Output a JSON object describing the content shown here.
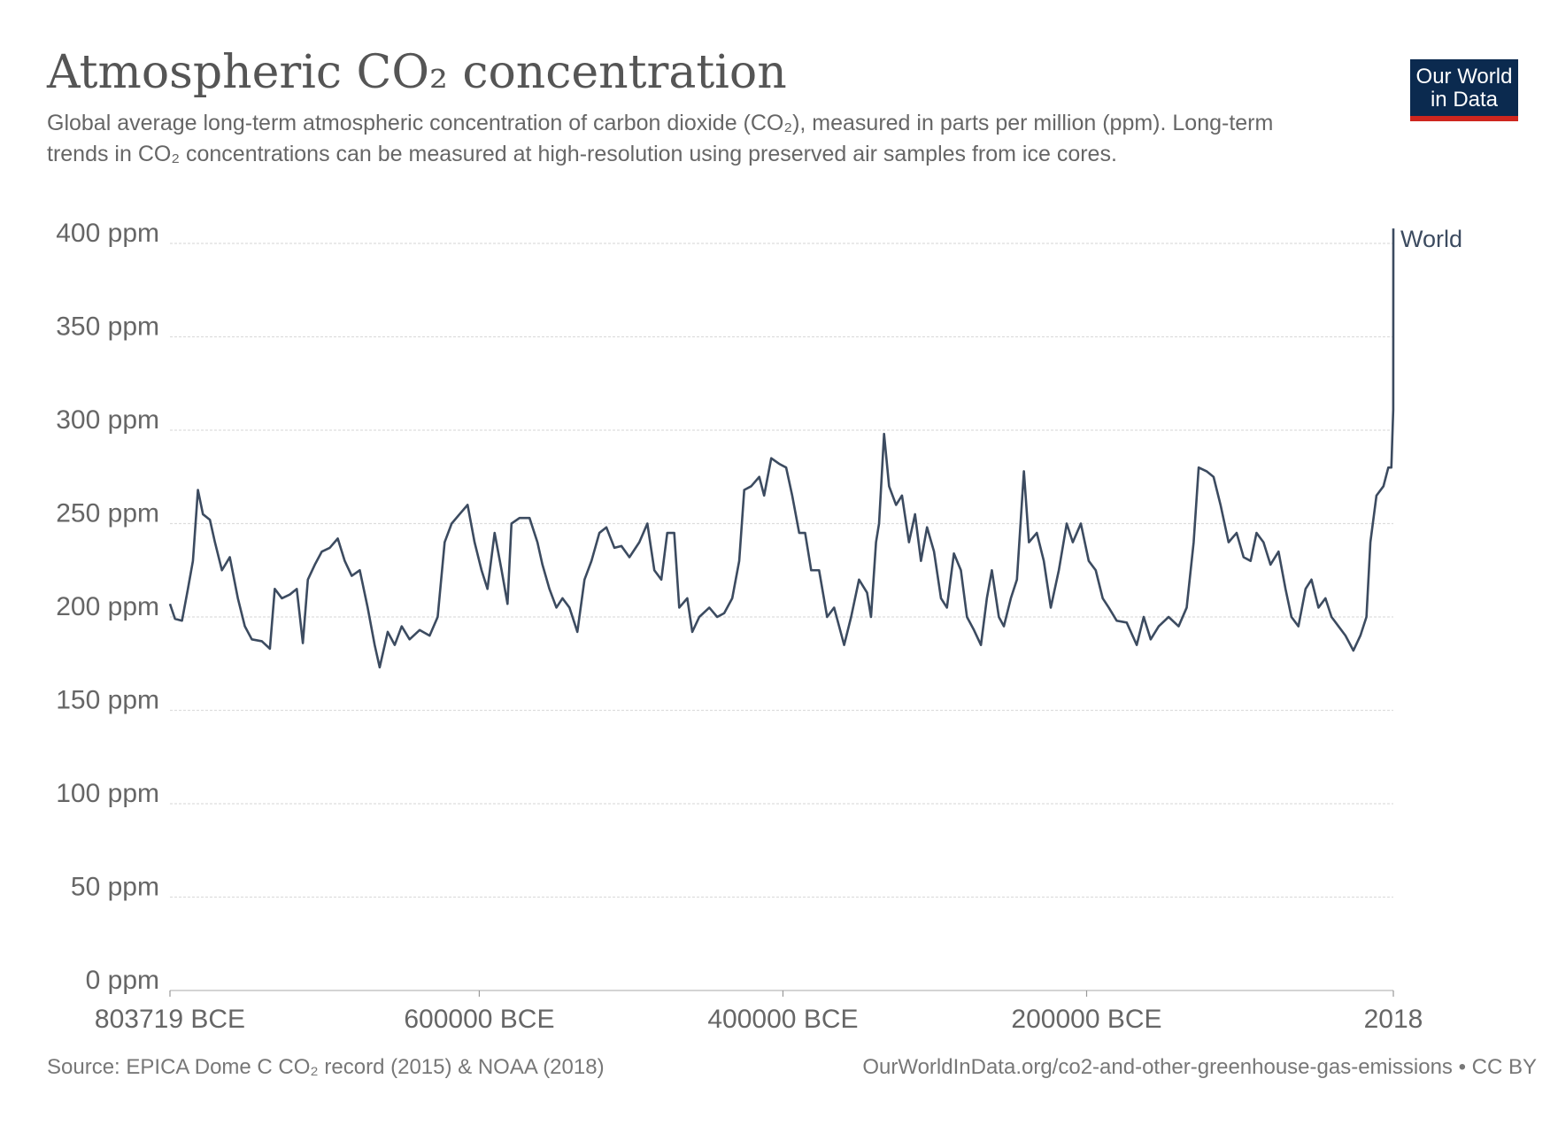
{
  "chart_data": {
    "type": "line",
    "title": "Atmospheric CO₂ concentration",
    "subtitle": "Global average long-term atmospheric concentration of carbon dioxide (CO₂), measured in parts per million (ppm). Long-term trends in CO₂ concentrations can be measured at high-resolution using preserved air samples from ice cores.",
    "logo": [
      "Our World",
      "in Data"
    ],
    "source": "Source: EPICA Dome C CO₂ record (2015) & NOAA (2018)",
    "url": "OurWorldInData.org/co2-and-other-greenhouse-gas-emissions • CC BY",
    "x": [
      -803719,
      -800400,
      -795800,
      -791900,
      -788600,
      -785300,
      -782000,
      -777400,
      -774100,
      -769500,
      -764300,
      -759000,
      -754400,
      -749800,
      -743200,
      -737900,
      -734700,
      -730000,
      -724800,
      -720200,
      -716200,
      -712900,
      -708300,
      -703700,
      -698500,
      -693200,
      -688600,
      -684000,
      -678700,
      -673500,
      -668900,
      -665600,
      -660300,
      -655700,
      -651100,
      -645900,
      -639300,
      -632700,
      -627400,
      -622800,
      -618200,
      -613000,
      -607700,
      -603100,
      -598500,
      -594600,
      -589900,
      -585300,
      -581400,
      -578800,
      -573500,
      -566900,
      -561700,
      -558400,
      -553800,
      -549200,
      -545200,
      -540600,
      -535400,
      -530700,
      -526100,
      -520900,
      -516300,
      -511000,
      -506400,
      -501100,
      -494600,
      -489300,
      -484700,
      -480100,
      -476200,
      -471600,
      -468300,
      -463000,
      -459700,
      -455100,
      -448500,
      -443300,
      -438700,
      -433400,
      -428800,
      -425500,
      -420900,
      -415600,
      -412400,
      -407700,
      -402500,
      -397900,
      -393900,
      -389300,
      -385400,
      -381400,
      -376200,
      -370900,
      -366300,
      -359700,
      -355100,
      -349900,
      -344600,
      -342000,
      -338700,
      -336700,
      -333400,
      -330100,
      -325500,
      -321600,
      -317000,
      -313000,
      -309100,
      -305100,
      -300500,
      -295900,
      -292000,
      -287400,
      -282800,
      -278800,
      -274200,
      -269600,
      -265700,
      -262400,
      -257800,
      -254500,
      -249900,
      -245900,
      -241300,
      -238000,
      -232800,
      -228200,
      -223600,
      -218300,
      -213100,
      -209100,
      -203800,
      -198600,
      -194000,
      -189400,
      -185400,
      -180200,
      -173600,
      -167000,
      -162400,
      -157800,
      -152500,
      -146000,
      -139400,
      -134100,
      -129500,
      -126200,
      -121000,
      -116400,
      -111800,
      -106500,
      -101200,
      -96600,
      -92000,
      -88100,
      -83500,
      -78900,
      -73600,
      -69000,
      -65100,
      -60500,
      -55800,
      -51900,
      -47300,
      -42700,
      -38700,
      -34100,
      -29500,
      -24300,
      -19700,
      -15700,
      -13100,
      -9100,
      -4500,
      -1300,
      700,
      1950,
      2018
    ],
    "series": [
      {
        "name": "World",
        "color": "#3c4b60",
        "values": [
          207,
          199,
          198,
          215,
          230,
          268,
          255,
          252,
          240,
          225,
          232,
          210,
          195,
          188,
          187,
          183,
          215,
          210,
          212,
          215,
          186,
          220,
          228,
          235,
          237,
          242,
          230,
          222,
          225,
          205,
          185,
          173,
          192,
          185,
          195,
          188,
          193,
          190,
          200,
          240,
          250,
          255,
          260,
          240,
          225,
          215,
          245,
          225,
          207,
          250,
          253,
          253,
          240,
          228,
          215,
          205,
          210,
          205,
          192,
          220,
          230,
          245,
          248,
          237,
          238,
          232,
          240,
          250,
          225,
          220,
          245,
          245,
          205,
          210,
          192,
          200,
          205,
          200,
          202,
          210,
          230,
          268,
          270,
          275,
          265,
          285,
          282,
          280,
          265,
          245,
          245,
          225,
          225,
          200,
          205,
          185,
          200,
          220,
          213,
          200,
          240,
          250,
          298,
          270,
          260,
          265,
          240,
          255,
          230,
          248,
          235,
          210,
          205,
          234,
          225,
          200,
          193,
          185,
          210,
          225,
          200,
          195,
          210,
          220,
          278,
          240,
          245,
          230,
          205,
          225,
          250,
          240,
          250,
          230,
          225,
          210,
          205,
          198,
          197,
          185,
          200,
          188,
          195,
          200,
          195,
          205,
          240,
          280,
          278,
          275,
          260,
          240,
          245,
          232,
          230,
          245,
          240,
          228,
          235,
          215,
          200,
          195,
          215,
          220,
          205,
          210,
          200,
          195,
          190,
          182,
          190,
          200,
          240,
          265,
          270,
          280,
          280,
          311,
          408
        ]
      }
    ],
    "xlim": [
      -803719,
      2018
    ],
    "xticks": [
      {
        "value": -803719,
        "label": "803719 BCE"
      },
      {
        "value": -600000,
        "label": "600000 BCE"
      },
      {
        "value": -400000,
        "label": "400000 BCE"
      },
      {
        "value": -200000,
        "label": "200000 BCE"
      },
      2018
    ],
    "ylim": [
      0,
      400
    ],
    "yticks": [
      {
        "value": 0,
        "label": "0 ppm"
      },
      {
        "value": 50,
        "label": "50 ppm"
      },
      {
        "value": 100,
        "label": "100 ppm"
      },
      {
        "value": 150,
        "label": "150 ppm"
      },
      {
        "value": 200,
        "label": "200 ppm"
      },
      {
        "value": 250,
        "label": "250 ppm"
      },
      {
        "value": 300,
        "label": "300 ppm"
      },
      {
        "value": 350,
        "label": "350 ppm"
      },
      {
        "value": 400,
        "label": "400 ppm"
      }
    ],
    "grid": true
  }
}
